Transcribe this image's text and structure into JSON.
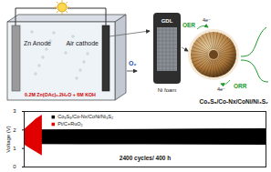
{
  "battery": {
    "anode": "Zn Anode",
    "cathode": "Air cathode",
    "electrolyte": "0.2M Zn(OAc)₂.2H₂O + 6M KOH",
    "gas": "O₂"
  },
  "electrode": {
    "layers": [
      "GDL",
      "Ni foam"
    ]
  },
  "catalyst": {
    "name": "Co₉S₈/Co-Nx/CoNi/Ni₃S₂",
    "reactions": [
      {
        "label": "OER",
        "electrons": "4e⁻"
      },
      {
        "label": "ORR",
        "electrons": "4e⁻"
      }
    ]
  },
  "chart_data": {
    "type": "area",
    "y_label": "Voltage (V)",
    "annotation": "2400 cycles/ 400 h",
    "xlim": [
      0,
      400
    ],
    "ylim": [
      0,
      3
    ],
    "yticks": [
      0,
      1,
      2,
      3
    ],
    "tick_labels": "y",
    "legend": "top-left",
    "series": [
      {
        "name": "Co₉S₈/Co-Nx/CoNi/Ni₃S₂",
        "color": "#000000",
        "x": [
          0,
          100,
          200,
          300,
          400
        ],
        "charge": [
          2.0,
          2.02,
          2.03,
          2.05,
          2.06
        ],
        "discharge": [
          1.22,
          1.21,
          1.2,
          1.19,
          1.18
        ]
      },
      {
        "name": "Pt/C+RuO₂",
        "color": "#e00000",
        "x": [
          0,
          10,
          20,
          30
        ],
        "charge": [
          2.0,
          2.3,
          2.6,
          2.8
        ],
        "discharge": [
          1.2,
          1.0,
          0.8,
          0.6
        ]
      }
    ]
  }
}
